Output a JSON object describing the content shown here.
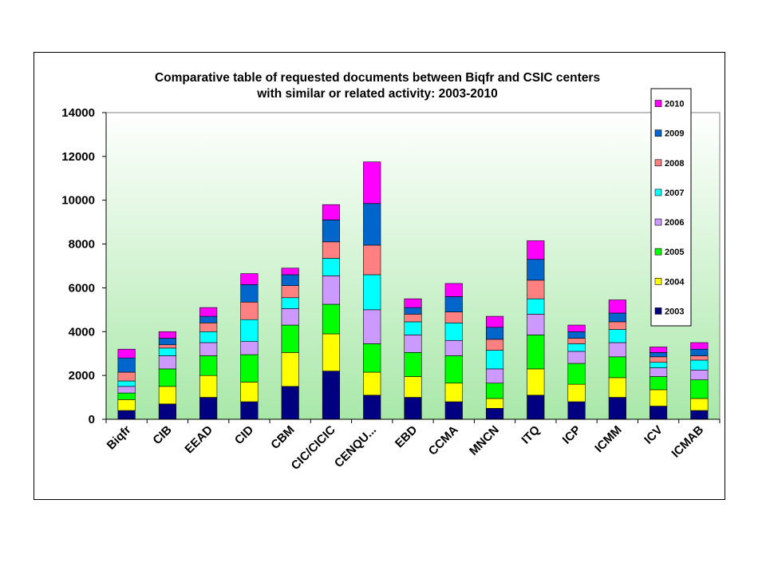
{
  "chart_data": {
    "type": "bar",
    "stacked": true,
    "title": "Comparative table of requested documents between Biqfr and CSIC centers with similar or related activity:  2003-2010",
    "title_lines": [
      "Comparative table of requested documents between Biqfr and CSIC centers",
      "with similar or related activity:  2003-2010"
    ],
    "xlabel": "",
    "ylabel": "",
    "ylim": [
      0,
      14000
    ],
    "yticks": [
      "0",
      "2000",
      "4000",
      "6000",
      "8000",
      "10000",
      "12000",
      "14000"
    ],
    "grid": false,
    "legend_position": "right",
    "categories": [
      "Biqfr",
      "CIB",
      "EEAD",
      "CID",
      "CBM",
      "CIC/CICIC",
      "CENQU...",
      "EBD",
      "CCMA",
      "MNCN",
      "ITQ",
      "ICP",
      "ICMM",
      "ICV",
      "ICMAB"
    ],
    "series": [
      {
        "name": "2003",
        "color": "#000080",
        "values": [
          400,
          700,
          1000,
          800,
          1500,
          2200,
          1100,
          1000,
          800,
          500,
          1100,
          800,
          1000,
          600,
          400
        ]
      },
      {
        "name": "2004",
        "color": "#ffff00",
        "values": [
          500,
          800,
          1000,
          900,
          1550,
          1700,
          1050,
          950,
          850,
          450,
          1200,
          800,
          900,
          750,
          550
        ]
      },
      {
        "name": "2005",
        "color": "#00ff00",
        "values": [
          300,
          800,
          900,
          1250,
          1250,
          1350,
          1300,
          1100,
          1250,
          700,
          1550,
          950,
          950,
          600,
          850
        ]
      },
      {
        "name": "2006",
        "color": "#cc99ff",
        "values": [
          300,
          600,
          600,
          600,
          750,
          1300,
          1550,
          800,
          700,
          650,
          950,
          550,
          650,
          400,
          450
        ]
      },
      {
        "name": "2007",
        "color": "#00ffff",
        "values": [
          250,
          350,
          500,
          1000,
          500,
          800,
          1600,
          600,
          800,
          850,
          700,
          350,
          600,
          250,
          450
        ]
      },
      {
        "name": "2008",
        "color": "#ff8080",
        "values": [
          400,
          150,
          400,
          800,
          550,
          750,
          1350,
          350,
          500,
          500,
          850,
          250,
          350,
          250,
          200
        ]
      },
      {
        "name": "2009",
        "color": "#0066cc",
        "values": [
          650,
          300,
          300,
          800,
          500,
          1000,
          1900,
          300,
          700,
          550,
          950,
          300,
          400,
          200,
          300
        ]
      },
      {
        "name": "2010",
        "color": "#ff00ff",
        "values": [
          400,
          300,
          400,
          500,
          300,
          700,
          1900,
          400,
          600,
          500,
          850,
          300,
          600,
          250,
          300
        ]
      }
    ]
  }
}
